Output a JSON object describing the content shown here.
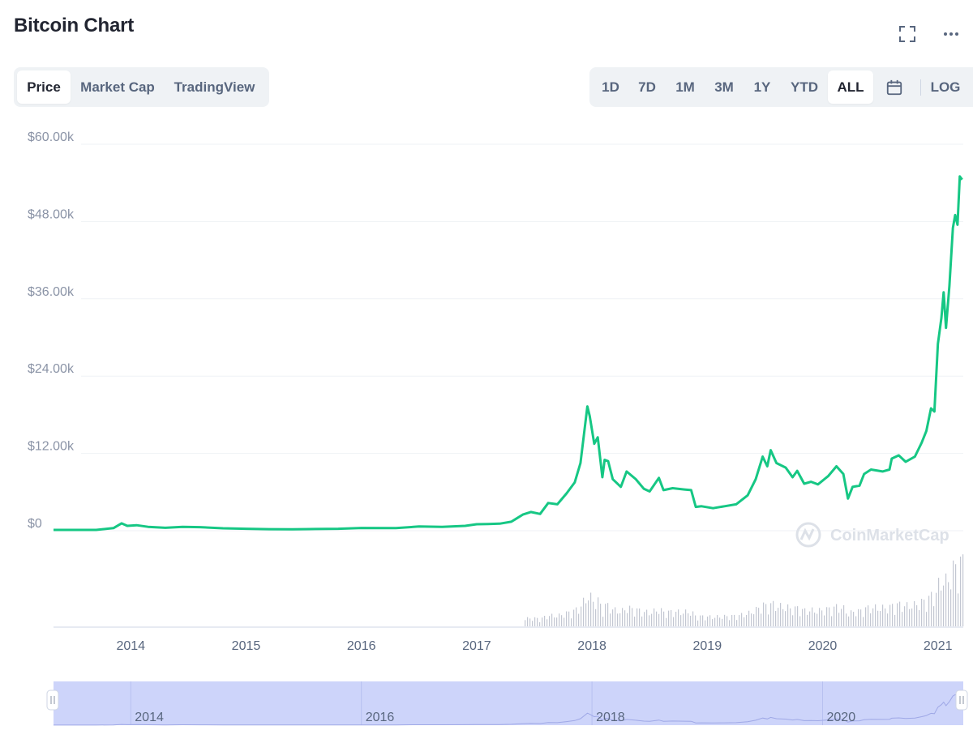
{
  "header": {
    "title": "Bitcoin Chart",
    "fullscreen_icon": "expand-icon",
    "more_icon": "more-horizontal-icon"
  },
  "view_tabs": [
    {
      "label": "Price",
      "active": true
    },
    {
      "label": "Market Cap",
      "active": false
    },
    {
      "label": "TradingView",
      "active": false
    }
  ],
  "range_tabs": [
    {
      "label": "1D",
      "active": false
    },
    {
      "label": "7D",
      "active": false
    },
    {
      "label": "1M",
      "active": false
    },
    {
      "label": "3M",
      "active": false
    },
    {
      "label": "1Y",
      "active": false
    },
    {
      "label": "YTD",
      "active": false
    },
    {
      "label": "ALL",
      "active": true
    }
  ],
  "calendar_icon": "calendar-icon",
  "log_label": "LOG",
  "watermark": "CoinMarketCap",
  "colors": {
    "price_line": "#16c784",
    "grid": "#eff2f5",
    "volume": "#c3c7d2",
    "navigator_fill": "#cdd4fa",
    "navigator_line": "#9fa8e6"
  },
  "chart_data": {
    "type": "line",
    "ylabels": [
      "$60.00k",
      "$48.00k",
      "$36.00k",
      "$24.00k",
      "$12.00k",
      "$0"
    ],
    "yticks": [
      60000,
      48000,
      36000,
      24000,
      12000,
      0
    ],
    "ylim": [
      0,
      60000
    ],
    "xlim": [
      2013.33,
      2021.22
    ],
    "xlabels": [
      "2014",
      "2015",
      "2016",
      "2017",
      "2018",
      "2019",
      "2020",
      "2021"
    ],
    "xticks": [
      2014,
      2015,
      2016,
      2017,
      2018,
      2019,
      2020,
      2021
    ],
    "series": [
      {
        "values": [
          [
            2013.33,
            120
          ],
          [
            2013.7,
            130
          ],
          [
            2013.85,
            400
          ],
          [
            2013.92,
            1150
          ],
          [
            2013.97,
            750
          ],
          [
            2014.05,
            850
          ],
          [
            2014.15,
            600
          ],
          [
            2014.3,
            450
          ],
          [
            2014.45,
            600
          ],
          [
            2014.6,
            550
          ],
          [
            2014.8,
            380
          ],
          [
            2015.0,
            300
          ],
          [
            2015.2,
            240
          ],
          [
            2015.4,
            230
          ],
          [
            2015.6,
            260
          ],
          [
            2015.8,
            300
          ],
          [
            2016.0,
            430
          ],
          [
            2016.3,
            420
          ],
          [
            2016.5,
            650
          ],
          [
            2016.7,
            610
          ],
          [
            2016.9,
            750
          ],
          [
            2017.0,
            1000
          ],
          [
            2017.1,
            1050
          ],
          [
            2017.2,
            1100
          ],
          [
            2017.3,
            1400
          ],
          [
            2017.4,
            2500
          ],
          [
            2017.47,
            2900
          ],
          [
            2017.55,
            2600
          ],
          [
            2017.62,
            4300
          ],
          [
            2017.7,
            4100
          ],
          [
            2017.78,
            5800
          ],
          [
            2017.85,
            7500
          ],
          [
            2017.9,
            10500
          ],
          [
            2017.96,
            19300
          ],
          [
            2017.98,
            17800
          ],
          [
            2018.02,
            13500
          ],
          [
            2018.05,
            14500
          ],
          [
            2018.09,
            8300
          ],
          [
            2018.11,
            11000
          ],
          [
            2018.14,
            10800
          ],
          [
            2018.18,
            8000
          ],
          [
            2018.25,
            6800
          ],
          [
            2018.3,
            9200
          ],
          [
            2018.38,
            8000
          ],
          [
            2018.45,
            6500
          ],
          [
            2018.5,
            6100
          ],
          [
            2018.58,
            8200
          ],
          [
            2018.62,
            6300
          ],
          [
            2018.7,
            6600
          ],
          [
            2018.8,
            6400
          ],
          [
            2018.86,
            6300
          ],
          [
            2018.9,
            3700
          ],
          [
            2018.95,
            3800
          ],
          [
            2019.05,
            3500
          ],
          [
            2019.15,
            3800
          ],
          [
            2019.25,
            4100
          ],
          [
            2019.35,
            5500
          ],
          [
            2019.42,
            8000
          ],
          [
            2019.48,
            11500
          ],
          [
            2019.52,
            10000
          ],
          [
            2019.55,
            12500
          ],
          [
            2019.6,
            10500
          ],
          [
            2019.68,
            9800
          ],
          [
            2019.74,
            8300
          ],
          [
            2019.78,
            9300
          ],
          [
            2019.84,
            7300
          ],
          [
            2019.9,
            7600
          ],
          [
            2019.96,
            7200
          ],
          [
            2020.05,
            8500
          ],
          [
            2020.12,
            10000
          ],
          [
            2020.18,
            8800
          ],
          [
            2020.22,
            5000
          ],
          [
            2020.26,
            6800
          ],
          [
            2020.32,
            7000
          ],
          [
            2020.36,
            8800
          ],
          [
            2020.42,
            9500
          ],
          [
            2020.52,
            9200
          ],
          [
            2020.58,
            9500
          ],
          [
            2020.6,
            11200
          ],
          [
            2020.66,
            11700
          ],
          [
            2020.72,
            10700
          ],
          [
            2020.8,
            11500
          ],
          [
            2020.86,
            13700
          ],
          [
            2020.9,
            15500
          ],
          [
            2020.94,
            19000
          ],
          [
            2020.97,
            18500
          ],
          [
            2021.0,
            29000
          ],
          [
            2021.03,
            33000
          ],
          [
            2021.05,
            37000
          ],
          [
            2021.07,
            31500
          ],
          [
            2021.1,
            38000
          ],
          [
            2021.13,
            47000
          ],
          [
            2021.15,
            49000
          ],
          [
            2021.17,
            47500
          ],
          [
            2021.19,
            55000
          ],
          [
            2021.21,
            54500
          ]
        ]
      }
    ],
    "navigator_labels": [
      "2014",
      "2016",
      "2018",
      "2020"
    ],
    "navigator_ticks": [
      2014,
      2016,
      2018,
      2020
    ]
  }
}
